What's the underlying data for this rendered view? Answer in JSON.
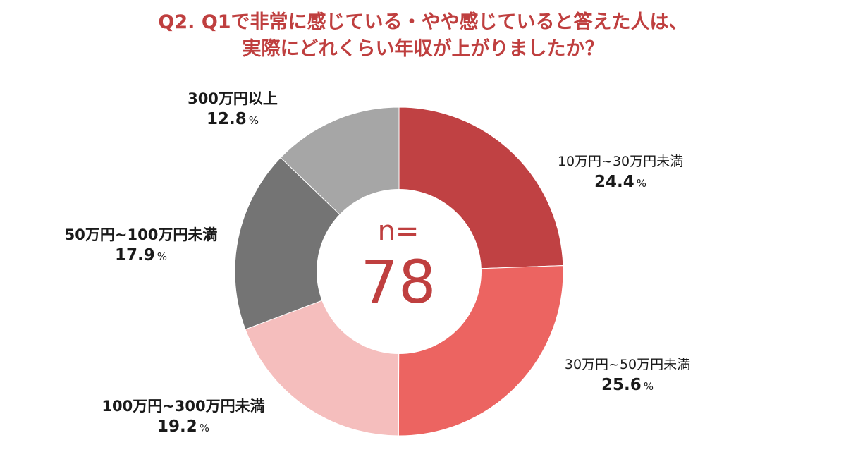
{
  "title": {
    "line1": "Q2. Q1で非常に感じている・やや感じていると答えた人は、",
    "line2": "実際にどれくらい年収が上がりましたか？"
  },
  "center": {
    "n_label": "n=",
    "count": "78"
  },
  "percent_unit": "%",
  "chart_data": {
    "type": "pie",
    "style": "donut",
    "categories": [
      "10万円~30万円未満",
      "30万円~50万円未満",
      "100万円~300万円未満",
      "50万円~100万円未満",
      "300万円以上"
    ],
    "values": [
      24.4,
      25.6,
      19.2,
      17.9,
      12.8
    ],
    "value_labels": [
      "24.4",
      "25.6",
      "19.2",
      "17.9",
      "12.8"
    ],
    "colors": [
      "#c04143",
      "#ec6461",
      "#f5bebd",
      "#747474",
      "#a6a6a6"
    ],
    "start": "12 o'clock",
    "direction": "clockwise"
  }
}
